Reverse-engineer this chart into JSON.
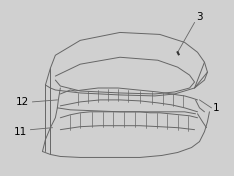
{
  "bg_color": "#d4d4d4",
  "line_color": "#666666",
  "line_color_dark": "#333333",
  "fig_bg": "#d0d0d0",
  "label_fontsize": 7.5
}
